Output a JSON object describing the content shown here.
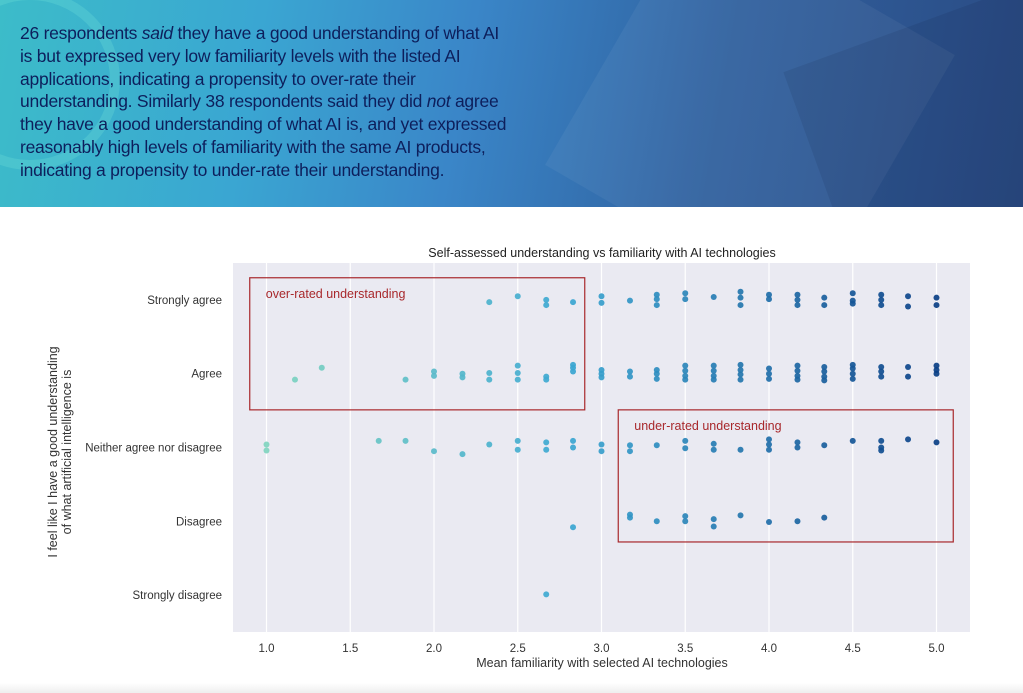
{
  "header": {
    "lines": [
      {
        "pre": "26 respondents ",
        "em": "said",
        "post": " they have a good understanding of what AI"
      },
      {
        "pre": "is but expressed very low familiarity levels with the listed AI",
        "em": "",
        "post": ""
      },
      {
        "pre": "applications, indicating a propensity to over-rate their",
        "em": "",
        "post": ""
      },
      {
        "pre": "understanding. Similarly 38 respondents said they did ",
        "em": "not",
        "post": " agree"
      },
      {
        "pre": "they have a good understanding of what AI is, and yet expressed",
        "em": "",
        "post": ""
      },
      {
        "pre": "reasonably high levels of familiarity with the same AI products,",
        "em": "",
        "post": ""
      },
      {
        "pre": "indicating a propensity to under-rate their understanding.",
        "em": "",
        "post": ""
      }
    ]
  },
  "chart_data": {
    "type": "scatter",
    "title": "Self-assessed understanding vs familiarity with AI technologies",
    "xlabel": "Mean familiarity with selected AI technologies",
    "ylabel_lines": [
      "I feel like I have a good understanding",
      "of what artificial intelligence is"
    ],
    "xlim": [
      0.8,
      5.2
    ],
    "xticks": [
      1.0,
      1.5,
      2.0,
      2.5,
      3.0,
      3.5,
      4.0,
      4.5,
      5.0
    ],
    "xtick_labels": [
      "1.0",
      "1.5",
      "2.0",
      "2.5",
      "3.0",
      "3.5",
      "4.0",
      "4.5",
      "5.0"
    ],
    "categories": [
      "Strongly agree",
      "Agree",
      "Neither agree nor disagree",
      "Disagree",
      "Strongly disagree"
    ],
    "grid": true,
    "color_low": "#80d4bf",
    "color_mid": "#3aa6d2",
    "color_high": "#0a3f86",
    "annotation_color": "#a8282c",
    "annotations": [
      {
        "label": "over-rated understanding",
        "x": [
          0.9,
          2.9
        ],
        "rows": [
          -0.3,
          1.49
        ]
      },
      {
        "label": "under-rated understanding",
        "x": [
          3.1,
          5.1
        ],
        "rows": [
          1.49,
          3.28
        ]
      }
    ],
    "points": [
      [
        2.33,
        0,
        0.03
      ],
      [
        2.5,
        0,
        -0.05
      ],
      [
        2.67,
        0,
        0
      ],
      [
        2.67,
        0,
        0.07
      ],
      [
        2.83,
        0,
        0.03
      ],
      [
        3.0,
        0,
        -0.05
      ],
      [
        3.0,
        0,
        0.04
      ],
      [
        3.17,
        0,
        0.01
      ],
      [
        3.33,
        0,
        -0.07
      ],
      [
        3.33,
        0,
        -0.01
      ],
      [
        3.33,
        0,
        0.07
      ],
      [
        3.5,
        0,
        -0.09
      ],
      [
        3.5,
        0,
        -0.01
      ],
      [
        3.67,
        0,
        -0.04
      ],
      [
        3.83,
        0,
        -0.11
      ],
      [
        3.83,
        0,
        -0.03
      ],
      [
        3.83,
        0,
        0.07
      ],
      [
        4.0,
        0,
        -0.07
      ],
      [
        4.0,
        0,
        -0.01
      ],
      [
        4.17,
        0,
        -0.07
      ],
      [
        4.17,
        0,
        0
      ],
      [
        4.17,
        0,
        0.07
      ],
      [
        4.33,
        0,
        -0.03
      ],
      [
        4.33,
        0,
        0.07
      ],
      [
        4.5,
        0,
        -0.09
      ],
      [
        4.5,
        0,
        0.01
      ],
      [
        4.5,
        0,
        0.05
      ],
      [
        4.67,
        0,
        -0.07
      ],
      [
        4.67,
        0,
        0
      ],
      [
        4.67,
        0,
        0.07
      ],
      [
        4.83,
        0,
        -0.05
      ],
      [
        4.83,
        0,
        0.09
      ],
      [
        5.0,
        0,
        -0.03
      ],
      [
        5.0,
        0,
        0.07
      ],
      [
        1.17,
        1,
        0.08
      ],
      [
        1.33,
        1,
        -0.08
      ],
      [
        1.83,
        1,
        0.08
      ],
      [
        2.0,
        1,
        -0.03
      ],
      [
        2.0,
        1,
        0.03
      ],
      [
        2.17,
        1,
        0
      ],
      [
        2.17,
        1,
        0.05
      ],
      [
        2.33,
        1,
        -0.01
      ],
      [
        2.33,
        1,
        0.08
      ],
      [
        2.5,
        1,
        -0.11
      ],
      [
        2.5,
        1,
        -0.01
      ],
      [
        2.5,
        1,
        0.08
      ],
      [
        2.67,
        1,
        0.04
      ],
      [
        2.67,
        1,
        0.08
      ],
      [
        2.83,
        1,
        -0.12
      ],
      [
        2.83,
        1,
        -0.08
      ],
      [
        2.83,
        1,
        -0.03
      ],
      [
        3.0,
        1,
        -0.05
      ],
      [
        3.0,
        1,
        0
      ],
      [
        3.0,
        1,
        0.05
      ],
      [
        3.17,
        1,
        -0.03
      ],
      [
        3.17,
        1,
        0.04
      ],
      [
        3.33,
        1,
        -0.05
      ],
      [
        3.33,
        1,
        0
      ],
      [
        3.33,
        1,
        0.07
      ],
      [
        3.5,
        1,
        -0.11
      ],
      [
        3.5,
        1,
        -0.04
      ],
      [
        3.5,
        1,
        0.03
      ],
      [
        3.5,
        1,
        0.08
      ],
      [
        3.67,
        1,
        -0.11
      ],
      [
        3.67,
        1,
        -0.04
      ],
      [
        3.67,
        1,
        0.03
      ],
      [
        3.67,
        1,
        0.08
      ],
      [
        3.83,
        1,
        -0.12
      ],
      [
        3.83,
        1,
        -0.05
      ],
      [
        3.83,
        1,
        0.01
      ],
      [
        3.83,
        1,
        0.08
      ],
      [
        4.0,
        1,
        -0.07
      ],
      [
        4.0,
        1,
        0
      ],
      [
        4.0,
        1,
        0.07
      ],
      [
        4.17,
        1,
        -0.11
      ],
      [
        4.17,
        1,
        -0.04
      ],
      [
        4.17,
        1,
        0.03
      ],
      [
        4.17,
        1,
        0.08
      ],
      [
        4.33,
        1,
        -0.09
      ],
      [
        4.33,
        1,
        -0.03
      ],
      [
        4.33,
        1,
        0.04
      ],
      [
        4.33,
        1,
        0.09
      ],
      [
        4.5,
        1,
        -0.12
      ],
      [
        4.5,
        1,
        -0.07
      ],
      [
        4.5,
        1,
        0
      ],
      [
        4.5,
        1,
        0.07
      ],
      [
        4.67,
        1,
        -0.09
      ],
      [
        4.67,
        1,
        -0.03
      ],
      [
        4.67,
        1,
        0.04
      ],
      [
        4.83,
        1,
        -0.09
      ],
      [
        4.83,
        1,
        0.04
      ],
      [
        5.0,
        1,
        -0.11
      ],
      [
        5.0,
        1,
        -0.05
      ],
      [
        5.0,
        1,
        0
      ],
      [
        1.0,
        2,
        -0.04
      ],
      [
        1.0,
        2,
        0.04
      ],
      [
        1.67,
        2,
        -0.09
      ],
      [
        1.83,
        2,
        -0.09
      ],
      [
        2.0,
        2,
        0.05
      ],
      [
        2.17,
        2,
        0.09
      ],
      [
        2.33,
        2,
        -0.04
      ],
      [
        2.5,
        2,
        -0.09
      ],
      [
        2.5,
        2,
        0.03
      ],
      [
        2.67,
        2,
        -0.07
      ],
      [
        2.67,
        2,
        0.03
      ],
      [
        2.83,
        2,
        -0.09
      ],
      [
        2.83,
        2,
        0
      ],
      [
        3.0,
        2,
        -0.04
      ],
      [
        3.0,
        2,
        0.05
      ],
      [
        3.17,
        2,
        -0.03
      ],
      [
        3.17,
        2,
        0.05
      ],
      [
        3.33,
        2,
        -0.03
      ],
      [
        3.5,
        2,
        -0.09
      ],
      [
        3.5,
        2,
        0.01
      ],
      [
        3.67,
        2,
        -0.05
      ],
      [
        3.67,
        2,
        0.03
      ],
      [
        3.83,
        2,
        0.03
      ],
      [
        4.0,
        2,
        -0.11
      ],
      [
        4.0,
        2,
        -0.04
      ],
      [
        4.0,
        2,
        0.03
      ],
      [
        4.17,
        2,
        -0.07
      ],
      [
        4.17,
        2,
        0
      ],
      [
        4.33,
        2,
        -0.03
      ],
      [
        4.5,
        2,
        -0.09
      ],
      [
        4.67,
        2,
        -0.09
      ],
      [
        4.67,
        2,
        0
      ],
      [
        4.67,
        2,
        0.04
      ],
      [
        4.83,
        2,
        -0.11
      ],
      [
        5.0,
        2,
        -0.07
      ],
      [
        2.83,
        3,
        0.08
      ],
      [
        3.17,
        3,
        -0.09
      ],
      [
        3.17,
        3,
        -0.05
      ],
      [
        3.33,
        3,
        0
      ],
      [
        3.5,
        3,
        -0.07
      ],
      [
        3.5,
        3,
        0
      ],
      [
        3.67,
        3,
        -0.03
      ],
      [
        3.67,
        3,
        0.07
      ],
      [
        3.83,
        3,
        -0.08
      ],
      [
        4.0,
        3,
        0.01
      ],
      [
        4.17,
        3,
        0
      ],
      [
        4.33,
        3,
        -0.05
      ],
      [
        2.67,
        4,
        -0.01
      ]
    ]
  }
}
